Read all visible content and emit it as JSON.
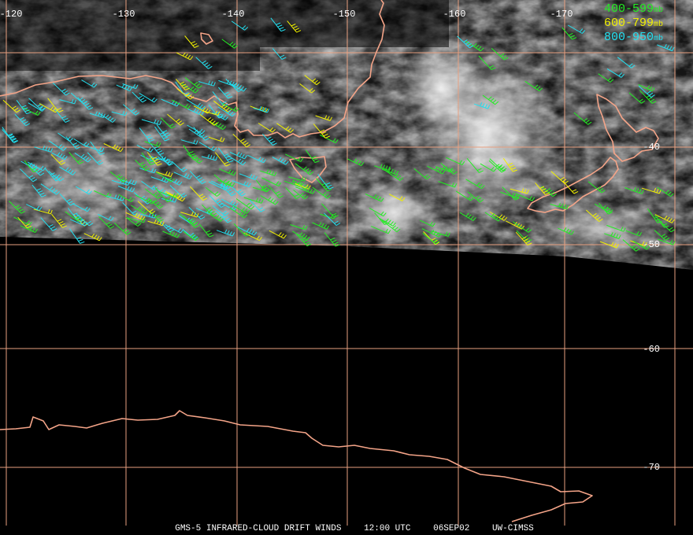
{
  "longitude_labels": [
    "-120",
    "-130",
    "-140",
    "-150",
    "-160",
    "-170"
  ],
  "latitude_labels": [
    "-40",
    "-50",
    "-60",
    "-70"
  ],
  "legend": [
    {
      "range": "400-599",
      "unit": "mb",
      "color": "#22ee22"
    },
    {
      "range": "600-799",
      "unit": "mb",
      "color": "#f0f000"
    },
    {
      "range": "800-950",
      "unit": "mb",
      "color": "#22e0f0"
    }
  ],
  "footer": {
    "product": "GMS-5 INFRARED-CLOUD DRIFT WINDS",
    "time": "12:00 UTC",
    "date": "06SEP02",
    "source": "UW-CIMSS"
  }
}
